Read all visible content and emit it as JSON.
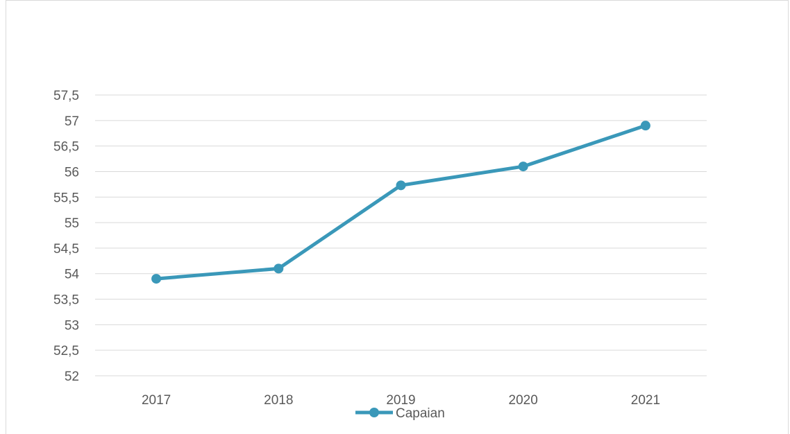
{
  "chart_data": {
    "type": "line",
    "title": "",
    "xlabel": "",
    "ylabel": "",
    "categories": [
      "2017",
      "2018",
      "2019",
      "2020",
      "2021"
    ],
    "series": [
      {
        "name": "Capaian",
        "values": [
          53.9,
          54.1,
          55.73,
          56.1,
          56.9
        ]
      }
    ],
    "ylim": [
      52,
      57.5
    ],
    "ytick_step": 0.5,
    "ytick_labels": [
      "52",
      "52,5",
      "53",
      "53,5",
      "54",
      "54,5",
      "55",
      "55,5",
      "56",
      "56,5",
      "57",
      "57,5"
    ],
    "grid": true,
    "legend": "bottom",
    "colors": {
      "series": "#3a98b9",
      "grid": "#d9d9d9",
      "text": "#595959"
    }
  }
}
